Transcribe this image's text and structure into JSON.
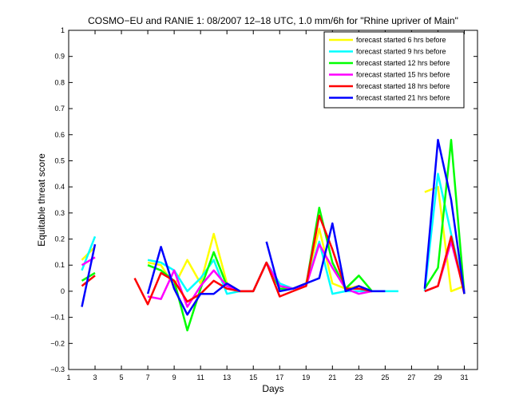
{
  "chart_data": {
    "type": "line",
    "title": "COSMO−EU and RANIE 1: 08/2007 12–18 UTC, 1.0 mm/6h for \"Rhine upriver of Main\"",
    "xlabel": "Days",
    "ylabel": "Equitable threat score",
    "xlim": [
      1,
      32
    ],
    "ylim": [
      -0.3,
      1
    ],
    "x_ticks": [
      1,
      3,
      5,
      7,
      9,
      11,
      13,
      15,
      17,
      19,
      21,
      23,
      25,
      27,
      29,
      31
    ],
    "y_ticks": [
      -0.3,
      -0.2,
      -0.1,
      0,
      0.1,
      0.2,
      0.3,
      0.4,
      0.5,
      0.6,
      0.7,
      0.8,
      0.9,
      1
    ],
    "y_tick_labels": [
      "−0.3",
      "−0.2",
      "−0.1",
      "0",
      "0.1",
      "0.2",
      "0.3",
      "0.4",
      "0.5",
      "0.6",
      "0.7",
      "0.8",
      "0.9",
      "1"
    ],
    "legend_position": "top-right",
    "series": [
      {
        "name": "forecast started 6 hrs before",
        "color": "#ffff00",
        "segments": [
          [
            [
              2,
              0.12
            ],
            [
              3,
              0.17
            ]
          ],
          [
            [
              7,
              0.11
            ],
            [
              8,
              0.1
            ],
            [
              9,
              0.02
            ],
            [
              10,
              0.12
            ],
            [
              11,
              0.03
            ],
            [
              12,
              0.22
            ],
            [
              13,
              0.03
            ],
            [
              14,
              0.0
            ],
            [
              15,
              0.0
            ],
            [
              16,
              0.11
            ],
            [
              17,
              0.02
            ],
            [
              18,
              0.01
            ],
            [
              19,
              0.03
            ],
            [
              20,
              0.24
            ],
            [
              21,
              0.03
            ],
            [
              22,
              0.01
            ],
            [
              23,
              0.02
            ],
            [
              24,
              0.0
            ]
          ],
          [
            [
              28,
              0.38
            ],
            [
              29,
              0.4
            ],
            [
              30,
              0.0
            ],
            [
              31,
              0.02
            ]
          ]
        ]
      },
      {
        "name": "forecast started 9 hrs before",
        "color": "#00ffff",
        "segments": [
          [
            [
              2,
              0.08
            ],
            [
              3,
              0.21
            ]
          ],
          [
            [
              7,
              0.12
            ],
            [
              8,
              0.11
            ],
            [
              9,
              0.08
            ],
            [
              10,
              0.0
            ],
            [
              11,
              0.05
            ],
            [
              12,
              0.12
            ],
            [
              13,
              -0.01
            ],
            [
              14,
              0.0
            ],
            [
              15,
              0.0
            ],
            [
              16,
              0.11
            ],
            [
              17,
              0.03
            ],
            [
              18,
              0.01
            ],
            [
              19,
              0.02
            ],
            [
              20,
              0.19
            ],
            [
              21,
              -0.01
            ],
            [
              22,
              0.0
            ],
            [
              23,
              0.0
            ],
            [
              24,
              0.0
            ],
            [
              25,
              0.0
            ],
            [
              26,
              0.0
            ]
          ],
          [
            [
              28,
              0.0
            ],
            [
              29,
              0.45
            ],
            [
              30,
              0.22
            ],
            [
              31,
              0.0
            ]
          ]
        ]
      },
      {
        "name": "forecast started 12 hrs before",
        "color": "#00ff00",
        "segments": [
          [
            [
              2,
              0.04
            ],
            [
              3,
              0.07
            ]
          ],
          [
            [
              7,
              0.1
            ],
            [
              8,
              0.08
            ],
            [
              9,
              0.04
            ],
            [
              10,
              -0.15
            ],
            [
              11,
              0.01
            ],
            [
              12,
              0.15
            ],
            [
              13,
              0.02
            ],
            [
              14,
              0.0
            ],
            [
              15,
              0.0
            ],
            [
              16,
              0.11
            ],
            [
              17,
              0.01
            ],
            [
              18,
              0.01
            ],
            [
              19,
              0.02
            ],
            [
              20,
              0.32
            ],
            [
              21,
              0.11
            ],
            [
              22,
              0.01
            ],
            [
              23,
              0.06
            ],
            [
              24,
              0.0
            ]
          ],
          [
            [
              28,
              0.01
            ],
            [
              29,
              0.09
            ],
            [
              30,
              0.58
            ],
            [
              31,
              -0.01
            ]
          ]
        ]
      },
      {
        "name": "forecast started 15 hrs before",
        "color": "#ff00ff",
        "segments": [
          [
            [
              2,
              0.1
            ],
            [
              3,
              0.13
            ]
          ],
          [
            [
              7,
              -0.02
            ],
            [
              8,
              -0.03
            ],
            [
              9,
              0.08
            ],
            [
              10,
              -0.06
            ],
            [
              11,
              0.02
            ],
            [
              12,
              0.08
            ],
            [
              13,
              0.02
            ],
            [
              14,
              0.0
            ],
            [
              15,
              0.0
            ],
            [
              16,
              0.11
            ],
            [
              17,
              0.02
            ],
            [
              18,
              0.01
            ],
            [
              19,
              0.02
            ],
            [
              20,
              0.18
            ],
            [
              21,
              0.09
            ],
            [
              22,
              0.01
            ],
            [
              23,
              -0.01
            ],
            [
              24,
              0.0
            ]
          ],
          [
            [
              28,
              0.0
            ],
            [
              29,
              0.02
            ],
            [
              30,
              0.19
            ],
            [
              31,
              0.0
            ]
          ]
        ]
      },
      {
        "name": "forecast started 18 hrs before",
        "color": "#ff0000",
        "segments": [
          [
            [
              2,
              0.02
            ],
            [
              3,
              0.06
            ]
          ],
          [
            [
              6,
              0.05
            ],
            [
              7,
              -0.05
            ],
            [
              8,
              0.07
            ],
            [
              9,
              0.04
            ],
            [
              10,
              -0.04
            ],
            [
              11,
              -0.01
            ],
            [
              12,
              0.04
            ],
            [
              13,
              0.01
            ],
            [
              14,
              0.0
            ],
            [
              15,
              0.0
            ],
            [
              16,
              0.11
            ],
            [
              17,
              -0.02
            ],
            [
              18,
              0.0
            ],
            [
              19,
              0.02
            ],
            [
              20,
              0.29
            ],
            [
              21,
              0.16
            ],
            [
              22,
              0.01
            ],
            [
              23,
              0.01
            ],
            [
              24,
              0.0
            ]
          ],
          [
            [
              28,
              0.0
            ],
            [
              29,
              0.02
            ],
            [
              30,
              0.21
            ],
            [
              31,
              -0.01
            ]
          ]
        ]
      },
      {
        "name": "forecast started 21 hrs before",
        "color": "#0000ff",
        "segments": [
          [
            [
              2,
              -0.06
            ],
            [
              3,
              0.18
            ]
          ],
          [
            [
              7,
              -0.01
            ],
            [
              8,
              0.17
            ],
            [
              9,
              0.01
            ],
            [
              10,
              -0.09
            ],
            [
              11,
              -0.01
            ],
            [
              12,
              -0.01
            ],
            [
              13,
              0.03
            ],
            [
              14,
              0.0
            ]
          ],
          [
            [
              16,
              0.19
            ],
            [
              17,
              0.0
            ],
            [
              18,
              0.01
            ],
            [
              19,
              0.03
            ],
            [
              20,
              0.05
            ],
            [
              21,
              0.26
            ],
            [
              22,
              0.0
            ],
            [
              23,
              0.02
            ],
            [
              24,
              0.0
            ],
            [
              25,
              0.0
            ]
          ],
          [
            [
              28,
              0.01
            ],
            [
              29,
              0.58
            ],
            [
              30,
              0.35
            ],
            [
              31,
              -0.01
            ]
          ]
        ]
      }
    ]
  }
}
